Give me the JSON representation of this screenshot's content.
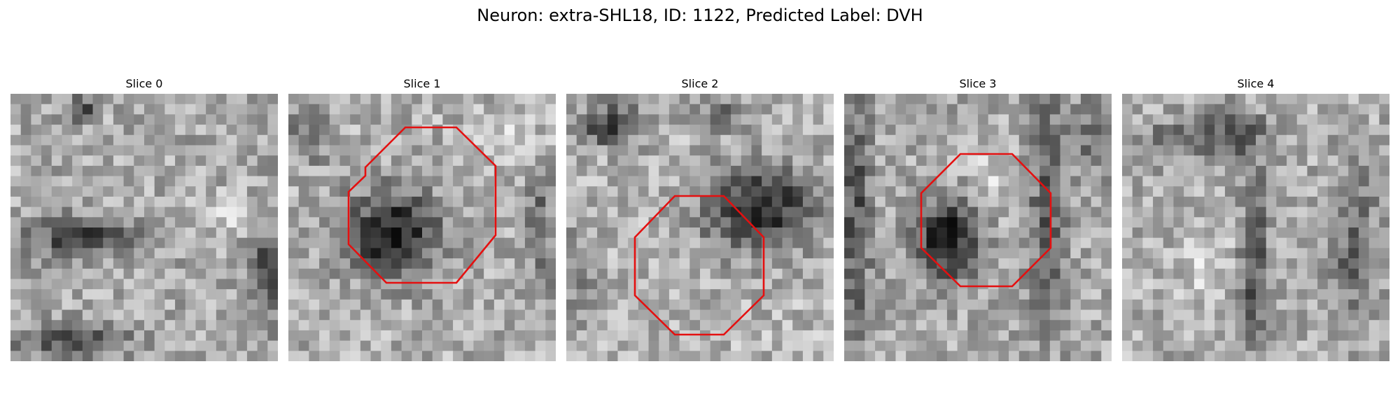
{
  "figure": {
    "title": "Neuron: extra-SHL18, ID: 1122, Predicted Label: DVH"
  },
  "overlay_color": "#e41010",
  "panels": [
    {
      "title": "Slice 0",
      "dark_blobs": [],
      "has_roi": false
    },
    {
      "title": "Slice 1",
      "has_roi": true
    },
    {
      "title": "Slice 2",
      "has_roi": true
    },
    {
      "title": "Slice 3",
      "has_roi": true
    },
    {
      "title": "Slice 4",
      "has_roi": false
    }
  ]
}
